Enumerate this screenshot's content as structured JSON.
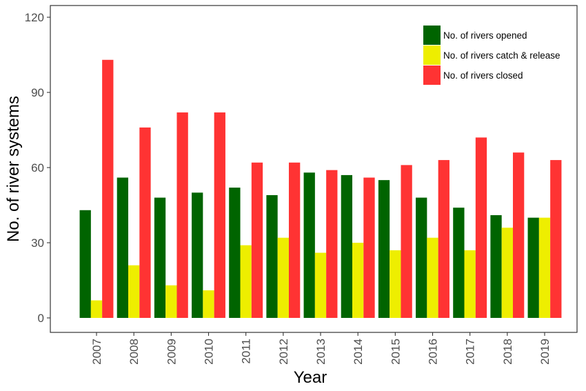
{
  "chart_data": {
    "type": "bar",
    "categories": [
      "2007",
      "2008",
      "2009",
      "2010",
      "2011",
      "2012",
      "2013",
      "2014",
      "2015",
      "2016",
      "2017",
      "2018",
      "2019"
    ],
    "series": [
      {
        "name": "No. of rivers opened",
        "color": "#006400",
        "values": [
          43,
          56,
          48,
          50,
          52,
          49,
          58,
          57,
          55,
          48,
          44,
          41,
          40
        ]
      },
      {
        "name": "No. of rivers catch & release",
        "color": "#EEEE00",
        "values": [
          7,
          21,
          13,
          11,
          29,
          32,
          26,
          30,
          27,
          32,
          27,
          36,
          40
        ]
      },
      {
        "name": "No. of rivers closed",
        "color": "#FF3333",
        "values": [
          103,
          76,
          82,
          82,
          62,
          62,
          59,
          56,
          61,
          63,
          72,
          66,
          63
        ]
      }
    ],
    "xlabel": "Year",
    "ylabel": "No. of river systems",
    "ylim": [
      0,
      120
    ],
    "yticks": [
      0,
      30,
      60,
      90,
      120
    ],
    "grid": false,
    "legend_position": "top-right"
  }
}
